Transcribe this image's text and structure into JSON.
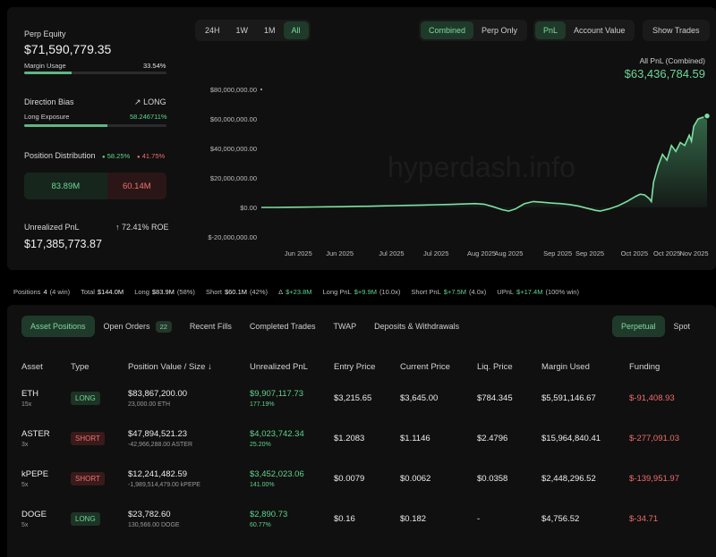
{
  "account": {
    "perp_equity_label": "Perp Equity",
    "perp_equity_value": "$71,590,779.35",
    "margin_usage_label": "Margin Usage",
    "margin_usage_value": "33.54%",
    "margin_usage_fraction": 0.3354,
    "direction_bias_label": "Direction Bias",
    "direction_bias_value": "LONG",
    "long_exposure_label": "Long Exposure",
    "long_exposure_value": "58.246711%",
    "long_exposure_fraction": 0.5825,
    "position_distribution_label": "Position Distribution",
    "long_pct": "58.25%",
    "short_pct": "41.75%",
    "long_amount": "83.89M",
    "short_amount": "60.14M",
    "unrealized_pnl_label": "Unrealized PnL",
    "unrealized_pnl_value": "$17,385,773.87",
    "roe": "72.41% ROE"
  },
  "time_range_buttons": [
    "24H",
    "1W",
    "1M",
    "All"
  ],
  "time_range_selected": "All",
  "mode_buttons": [
    "Combined",
    "Perp Only"
  ],
  "mode_selected": "Combined",
  "metric_buttons": [
    "PnL",
    "Account Value"
  ],
  "metric_selected": "PnL",
  "show_trades_label": "Show Trades",
  "pnl_summary": {
    "label": "All PnL (Combined)",
    "value": "$63,436,784.59"
  },
  "watermark": "hyperdash.info",
  "colors": {
    "accent_green": "#5fd38d",
    "negative_red": "#f06b6b",
    "panel_bg": "#101010"
  },
  "chart_data": {
    "type": "area",
    "y_ticks": [
      "$80,000,000.00",
      "$60,000,000.00",
      "$40,000,000.00",
      "$20,000,000.00",
      "$0.00",
      "$-20,000,000.00"
    ],
    "y_tick_values": [
      80000000,
      60000000,
      40000000,
      20000000,
      0,
      -20000000
    ],
    "ylim": [
      -20000000,
      80000000
    ],
    "x_ticks": [
      "Jun 2025",
      "Jun 2025",
      "Jul 2025",
      "Jul 2025",
      "Aug 2025",
      "Aug 2025",
      "Sep 2025",
      "Sep 2025",
      "Oct 2025",
      "Oct 2025",
      "Nov 2025"
    ],
    "x_tick_positions": [
      0.083,
      0.176,
      0.292,
      0.392,
      0.494,
      0.555,
      0.665,
      0.737,
      0.837,
      0.91,
      0.971
    ],
    "x": [
      0,
      0.03,
      0.06,
      0.09,
      0.12,
      0.15,
      0.18,
      0.21,
      0.24,
      0.27,
      0.3,
      0.33,
      0.36,
      0.39,
      0.42,
      0.45,
      0.48,
      0.5,
      0.52,
      0.54,
      0.555,
      0.57,
      0.59,
      0.61,
      0.63,
      0.65,
      0.66,
      0.67,
      0.69,
      0.71,
      0.73,
      0.75,
      0.76,
      0.78,
      0.8,
      0.82,
      0.84,
      0.85,
      0.86,
      0.87,
      0.875,
      0.88,
      0.89,
      0.9,
      0.91,
      0.92,
      0.93,
      0.94,
      0.95,
      0.96,
      0.965,
      0.97,
      0.98,
      0.99,
      1.0
    ],
    "y": [
      0,
      0,
      0.1,
      0.2,
      0.3,
      0.4,
      0.5,
      0.7,
      0.8,
      1.0,
      1.2,
      1.4,
      1.6,
      1.8,
      2.0,
      2.3,
      2.6,
      2.2,
      0.5,
      -1.5,
      -2.5,
      -1.0,
      2.5,
      4.0,
      3.5,
      3.0,
      2.8,
      2.6,
      2.0,
      1.0,
      -0.5,
      -2.0,
      -2.5,
      -1.0,
      1.0,
      4.0,
      7.5,
      9.0,
      8.5,
      6.0,
      4.0,
      17.0,
      28.0,
      36.0,
      32.0,
      42.0,
      38.0,
      44.0,
      42.0,
      49.0,
      45.0,
      55.0,
      60.0,
      61.0,
      62.0
    ]
  },
  "stats": {
    "positions_label": "Positions",
    "positions_value": "4",
    "positions_win": "(4 win)",
    "total_label": "Total",
    "total_value": "$144.0M",
    "long_label": "Long",
    "long_value": "$83.9M",
    "long_pct": "(58%)",
    "short_label": "Short",
    "short_value": "$60.1M",
    "short_pct": "(42%)",
    "delta_label": "Δ",
    "delta_value": "$+23.8M",
    "long_pnl_label": "Long PnL",
    "long_pnl_value": "$+9.9M",
    "long_pnl_x": "(10.0x)",
    "short_pnl_label": "Short PnL",
    "short_pnl_value": "$+7.5M",
    "short_pnl_x": "(4.0x)",
    "upnl_label": "UPnL",
    "upnl_value": "$+17.4M",
    "upnl_win": "(100% win)"
  },
  "tabs": [
    {
      "label": "Asset Positions",
      "active": true
    },
    {
      "label": "Open Orders",
      "count": "22"
    },
    {
      "label": "Recent Fills"
    },
    {
      "label": "Completed Trades"
    },
    {
      "label": "TWAP"
    },
    {
      "label": "Deposits & Withdrawals"
    }
  ],
  "market_toggle": [
    "Perpetual",
    "Spot"
  ],
  "market_selected": "Perpetual",
  "table": {
    "headers": [
      "Asset",
      "Type",
      "Position Value / Size ↓",
      "Unrealized PnL",
      "Entry Price",
      "Current Price",
      "Liq. Price",
      "Margin Used",
      "Funding"
    ],
    "rows": [
      {
        "asset": "ETH",
        "leverage": "15x",
        "type": "LONG",
        "value": "$83,867,200.00",
        "size": "23,000.00 ETH",
        "upnl": "$9,907,117.73",
        "upnl_pct": "177.19%",
        "entry": "$3,215.65",
        "current": "$3,645.00",
        "liq": "$784.345",
        "margin": "$5,591,146.67",
        "funding": "$-91,408.93"
      },
      {
        "asset": "ASTER",
        "leverage": "3x",
        "type": "SHORT",
        "value": "$47,894,521.23",
        "size": "-42,966,288.00 ASTER",
        "upnl": "$4,023,742.34",
        "upnl_pct": "25.20%",
        "entry": "$1.2083",
        "current": "$1.1146",
        "liq": "$2.4796",
        "margin": "$15,964,840.41",
        "funding": "$-277,091.03"
      },
      {
        "asset": "kPEPE",
        "leverage": "5x",
        "type": "SHORT",
        "value": "$12,241,482.59",
        "size": "-1,989,514,479.00 kPEPE",
        "upnl": "$3,452,023.06",
        "upnl_pct": "141.00%",
        "entry": "$0.0079",
        "current": "$0.0062",
        "liq": "$0.0358",
        "margin": "$2,448,296.52",
        "funding": "$-139,951.97"
      },
      {
        "asset": "DOGE",
        "leverage": "5x",
        "type": "LONG",
        "value": "$23,782.60",
        "size": "130,566.00 DOGE",
        "upnl": "$2,890.73",
        "upnl_pct": "60.77%",
        "entry": "$0.16",
        "current": "$0.182",
        "liq": "-",
        "margin": "$4,756.52",
        "funding": "$-34.71"
      }
    ]
  }
}
